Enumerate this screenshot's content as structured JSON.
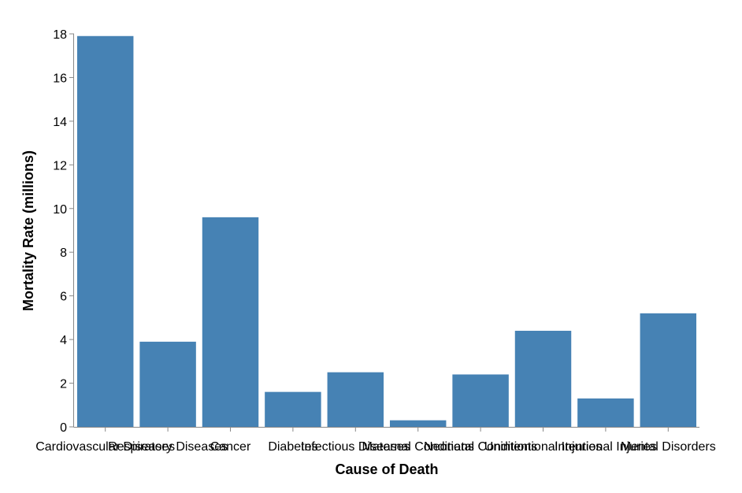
{
  "chart_data": {
    "type": "bar",
    "title": "",
    "xlabel": "Cause of Death",
    "ylabel": "Mortality Rate (millions)",
    "ylim": [
      0,
      18
    ],
    "yticks": [
      0,
      2,
      4,
      6,
      8,
      10,
      12,
      14,
      16,
      18
    ],
    "grid": false,
    "bar_color": "#4682b4",
    "categories": [
      "Cardiovascular Diseases",
      "Respiratory Diseases",
      "Cancer",
      "Diabetes",
      "Infectious Diseases",
      "Maternal Conditions",
      "Neonatal Conditions",
      "Unintentional Injuries",
      "Intentional Injuries",
      "Mental Disorders"
    ],
    "values": [
      17.9,
      3.9,
      9.6,
      1.6,
      2.5,
      0.3,
      2.4,
      4.4,
      1.3,
      5.2
    ]
  }
}
